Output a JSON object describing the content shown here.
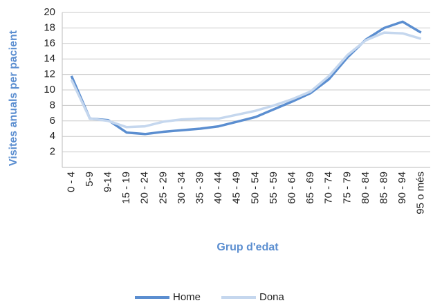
{
  "chart_data": {
    "type": "line",
    "x_label": "Grup d'edat",
    "y_label": "Visites anuals per pacient",
    "categories": [
      "0 - 4",
      "5-9",
      "9-14",
      "15 - 19",
      "20 - 24",
      "25 - 29",
      "30 - 34",
      "35 - 39",
      "40 - 44",
      "45 - 49",
      "50 - 54",
      "55 - 59",
      "60 - 64",
      "65 - 69",
      "70 - 74",
      "75 - 79",
      "80 - 84",
      "85 - 89",
      "90 - 94",
      "95 o més"
    ],
    "series": [
      {
        "name": "Home",
        "color": "#5b8ed0",
        "values": [
          11.8,
          6.3,
          6.1,
          4.5,
          4.3,
          4.6,
          4.8,
          5.0,
          5.3,
          5.9,
          6.5,
          7.5,
          8.5,
          9.6,
          11.4,
          14.2,
          16.5,
          18.0,
          18.8,
          17.4
        ]
      },
      {
        "name": "Dona",
        "color": "#c5d7ee",
        "values": [
          11.3,
          6.3,
          6.0,
          5.2,
          5.3,
          5.9,
          6.2,
          6.3,
          6.3,
          6.8,
          7.3,
          8.0,
          8.8,
          9.8,
          11.8,
          14.5,
          16.4,
          17.4,
          17.3,
          16.6
        ]
      }
    ],
    "ylim": [
      0,
      20
    ],
    "yticks": [
      2,
      4,
      6,
      8,
      10,
      12,
      14,
      16,
      18,
      20
    ],
    "grid": true,
    "legend": "bottom"
  }
}
